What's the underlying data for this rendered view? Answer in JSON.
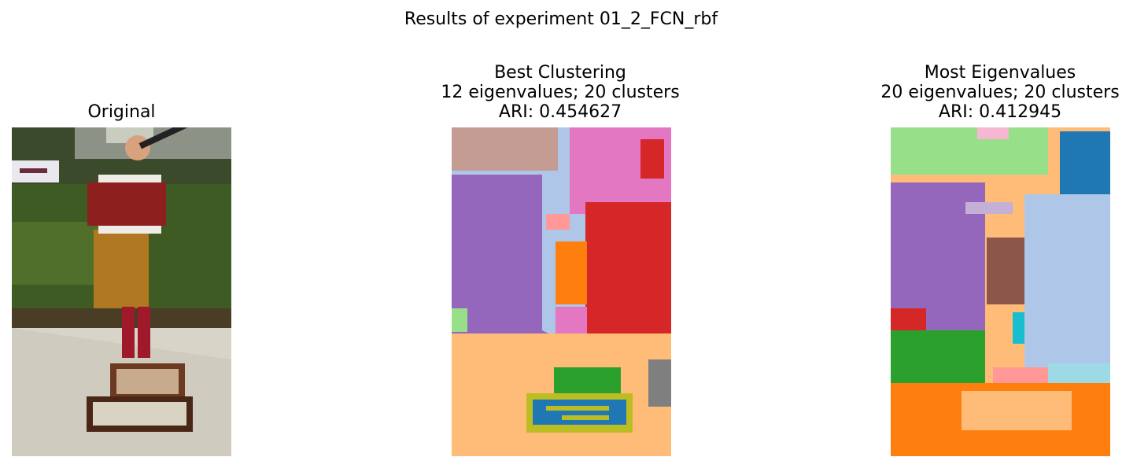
{
  "figure": {
    "suptitle": "Results of experiment 01_2_FCN_rbf"
  },
  "panels": [
    {
      "id": "original",
      "title_lines": [
        "Original"
      ]
    },
    {
      "id": "best",
      "title_lines": [
        "Best Clustering",
        "12 eigenvalues; 20 clusters",
        "ARI: 0.454627"
      ]
    },
    {
      "id": "most",
      "title_lines": [
        "Most Eigenvalues",
        "20 eigenvalues; 20 clusters",
        "ARI: 0.412945"
      ]
    }
  ],
  "colors": {
    "tab_blue": "#1f77b4",
    "tab_orange": "#ff7f0e",
    "tab_green": "#2ca02c",
    "tab_red": "#d62728",
    "tab_purple": "#9467bd",
    "tab_brown": "#8c564b",
    "tab_pink": "#e377c2",
    "tab_gray": "#7f7f7f",
    "tab_olive": "#bcbd22",
    "tab_cyan": "#17becf",
    "light_blue": "#aec7e8",
    "light_orange": "#ffbb78",
    "light_green": "#98df8a",
    "light_red": "#ff9896",
    "light_purple": "#c5b0d5",
    "light_brown": "#c49c94",
    "light_pink": "#f7b6d2",
    "light_gray": "#c7c7c7",
    "light_olive": "#dbdb8d",
    "light_cyan": "#9edae5"
  }
}
